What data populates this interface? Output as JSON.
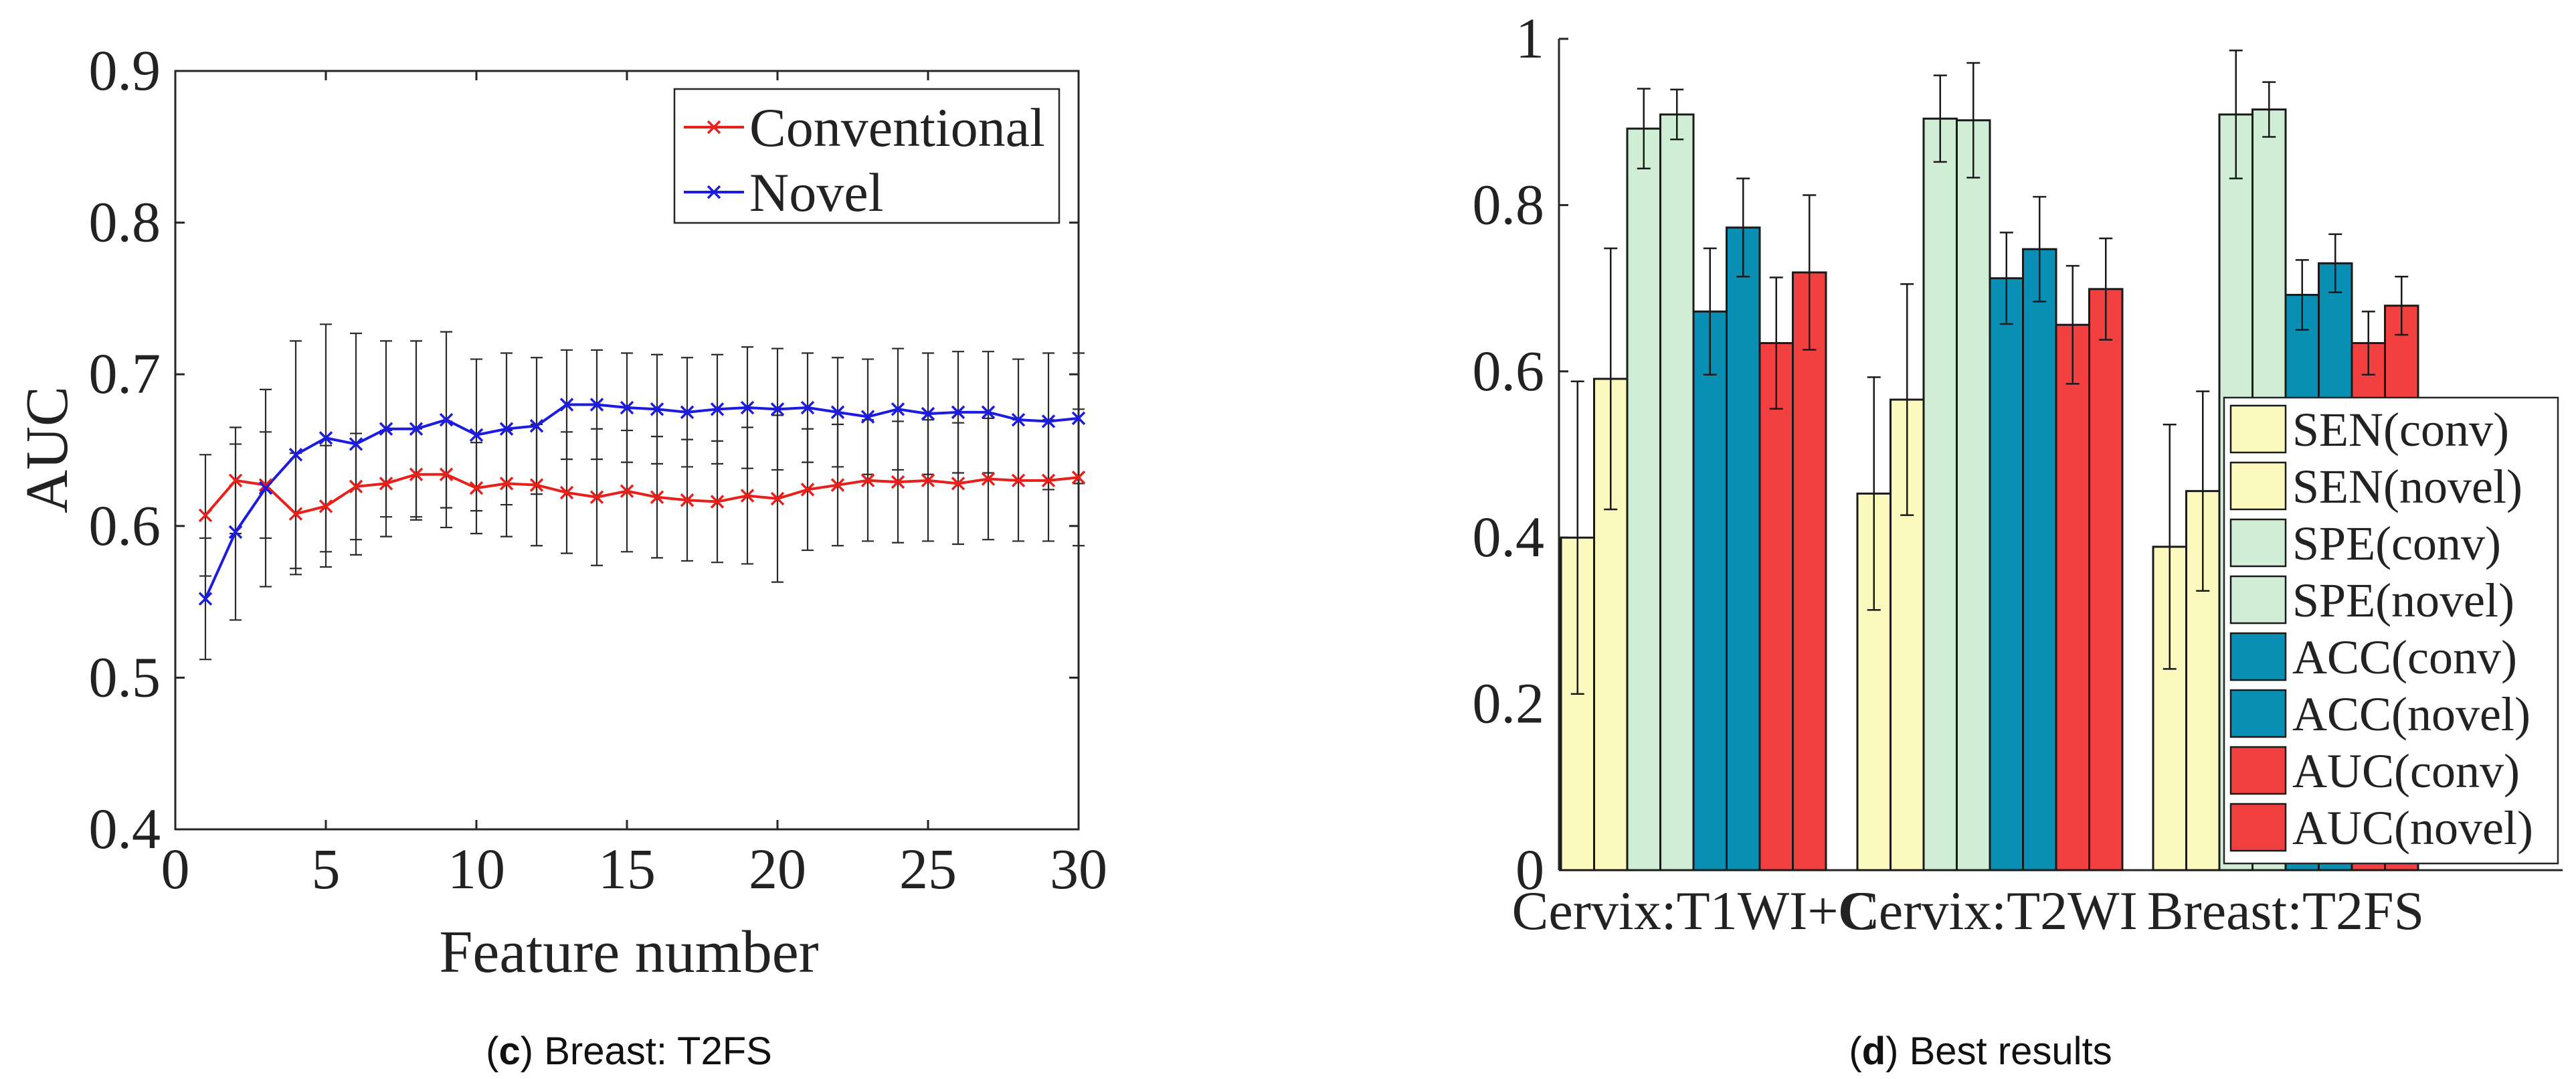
{
  "chart_data": [
    {
      "type": "line",
      "caption_letter": "c",
      "caption_text": "Breast: T2FS",
      "xlabel": "Feature number",
      "ylabel": "AUC",
      "xlim": [
        0,
        30
      ],
      "ylim": [
        0.4,
        0.9
      ],
      "x_ticks": [
        "0",
        "5",
        "10",
        "15",
        "20",
        "25",
        "30"
      ],
      "y_ticks": [
        "0.4",
        "0.5",
        "0.6",
        "0.7",
        "0.8",
        "0.9"
      ],
      "legend_position": "top-right",
      "x": [
        1,
        2,
        3,
        4,
        5,
        6,
        7,
        8,
        9,
        10,
        11,
        12,
        13,
        14,
        15,
        16,
        17,
        18,
        19,
        20,
        21,
        22,
        23,
        24,
        25,
        26,
        27,
        28,
        29,
        30
      ],
      "series": [
        {
          "name": "Conventional",
          "color": "#e8201c",
          "values": [
            0.607,
            0.63,
            0.627,
            0.608,
            0.613,
            0.626,
            0.628,
            0.634,
            0.634,
            0.625,
            0.628,
            0.627,
            0.622,
            0.619,
            0.623,
            0.619,
            0.617,
            0.616,
            0.62,
            0.618,
            0.624,
            0.627,
            0.63,
            0.629,
            0.63,
            0.628,
            0.631,
            0.63,
            0.63,
            0.632
          ],
          "errors": [
            0.04,
            0.035,
            0.035,
            0.04,
            0.04,
            0.035,
            0.035,
            0.03,
            0.035,
            0.03,
            0.035,
            0.04,
            0.04,
            0.045,
            0.04,
            0.04,
            0.04,
            0.04,
            0.045,
            0.055,
            0.04,
            0.04,
            0.04,
            0.04,
            0.04,
            0.04,
            0.04,
            0.04,
            0.04,
            0.045
          ]
        },
        {
          "name": "Novel",
          "color": "#1c1ce0",
          "values": [
            0.552,
            0.596,
            0.625,
            0.647,
            0.658,
            0.654,
            0.664,
            0.664,
            0.67,
            0.66,
            0.664,
            0.666,
            0.68,
            0.68,
            0.678,
            0.677,
            0.675,
            0.677,
            0.678,
            0.677,
            0.678,
            0.675,
            0.672,
            0.677,
            0.674,
            0.675,
            0.675,
            0.67,
            0.669,
            0.671
          ],
          "errors": [
            0.04,
            0.058,
            0.065,
            0.075,
            0.075,
            0.073,
            0.058,
            0.058,
            0.058,
            0.05,
            0.05,
            0.045,
            0.036,
            0.036,
            0.036,
            0.036,
            0.036,
            0.036,
            0.04,
            0.04,
            0.036,
            0.036,
            0.038,
            0.04,
            0.04,
            0.04,
            0.04,
            0.04,
            0.045,
            0.043
          ]
        }
      ]
    },
    {
      "type": "bar",
      "caption_letter": "d",
      "caption_text": "Best results",
      "ylim": [
        0,
        1
      ],
      "y_ticks": [
        "0",
        "0.2",
        "0.4",
        "0.6",
        "0.8",
        "1"
      ],
      "categories": [
        "Cervix:T1WI+C",
        "Cervix:T2WI",
        "Breast:T2FS"
      ],
      "legend_position": "right",
      "series": [
        {
          "name": "SEN(conv)",
          "color": "#fcf9bf",
          "values": [
            0.4,
            0.453,
            0.389
          ],
          "errors": [
            0.188,
            0.14,
            0.147
          ]
        },
        {
          "name": "SEN(novel)",
          "color": "#fcf9bf",
          "values": [
            0.591,
            0.566,
            0.456
          ],
          "errors": [
            0.157,
            0.139,
            0.12
          ]
        },
        {
          "name": "SPE(conv)",
          "color": "#cfeed5",
          "values": [
            0.892,
            0.904,
            0.909
          ],
          "errors": [
            0.048,
            0.052,
            0.077
          ]
        },
        {
          "name": "SPE(novel)",
          "color": "#cfeed5",
          "values": [
            0.909,
            0.902,
            0.915
          ],
          "errors": [
            0.03,
            0.069,
            0.033
          ]
        },
        {
          "name": "ACC(conv)",
          "color": "#0a8fb4",
          "values": [
            0.672,
            0.712,
            0.692
          ],
          "errors": [
            0.076,
            0.055,
            0.042
          ]
        },
        {
          "name": "ACC(novel)",
          "color": "#0a8fb4",
          "values": [
            0.773,
            0.747,
            0.73
          ],
          "errors": [
            0.059,
            0.063,
            0.035
          ]
        },
        {
          "name": "AUC(conv)",
          "color": "#f24040",
          "values": [
            0.634,
            0.656,
            0.634
          ],
          "errors": [
            0.079,
            0.071,
            0.038
          ]
        },
        {
          "name": "AUC(novel)",
          "color": "#f24040",
          "values": [
            0.719,
            0.699,
            0.679
          ],
          "errors": [
            0.093,
            0.061,
            0.035
          ]
        }
      ]
    }
  ]
}
